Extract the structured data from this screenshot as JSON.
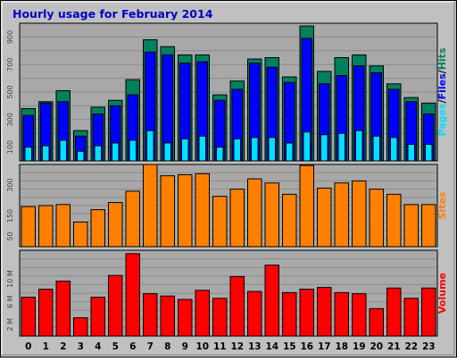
{
  "colors": {
    "page_bg": "#C0C0C0",
    "plot_bg": "#A8A8A8",
    "title": "#0000CC",
    "hits": "#00805C",
    "files": "#0000FF",
    "pages": "#00E0FF",
    "sites": "#FF8000",
    "volume": "#FF0000"
  },
  "chart_data": {
    "type": "bar",
    "title": "Hourly usage for February 2014",
    "categories": [
      "0",
      "1",
      "2",
      "3",
      "4",
      "5",
      "6",
      "7",
      "8",
      "9",
      "10",
      "11",
      "12",
      "13",
      "14",
      "15",
      "16",
      "17",
      "18",
      "19",
      "20",
      "21",
      "22",
      "23"
    ],
    "panels": [
      {
        "id": "hits-files-pages",
        "ylabel_parts": [
          "Pages",
          "Files",
          "Hits"
        ],
        "ylim": [
          0,
          1000
        ],
        "yticks": [
          "100",
          "300",
          "500",
          "700",
          "900"
        ],
        "grid": true,
        "series": [
          {
            "name": "Hits",
            "values": [
              380,
              430,
              510,
              220,
              390,
              440,
              590,
              880,
              830,
              770,
              770,
              480,
              580,
              740,
              750,
              610,
              980,
              650,
              750,
              770,
              690,
              560,
              460,
              420
            ]
          },
          {
            "name": "Files",
            "values": [
              330,
              420,
              430,
              180,
              340,
              400,
              480,
              790,
              770,
              710,
              720,
              440,
              520,
              710,
              680,
              570,
              890,
              560,
              620,
              690,
              640,
              520,
              430,
              340
            ]
          },
          {
            "name": "Pages",
            "values": [
              100,
              110,
              150,
              70,
              110,
              130,
              150,
              220,
              130,
              160,
              180,
              100,
              160,
              170,
              170,
              130,
              210,
              190,
              200,
              220,
              180,
              170,
              120,
              120
            ]
          }
        ]
      },
      {
        "id": "sites",
        "ylabel_parts": [
          "Sites"
        ],
        "ylim": [
          0,
          400
        ],
        "yticks": [
          "50",
          "150",
          "300"
        ],
        "grid": true,
        "series": [
          {
            "name": "Sites",
            "values": [
              195,
              200,
              205,
              120,
              180,
              215,
              270,
              400,
              345,
              350,
              355,
              245,
              280,
              330,
              310,
              255,
              395,
              285,
              310,
              320,
              280,
              255,
              205,
              205
            ]
          }
        ]
      },
      {
        "id": "volume",
        "ylabel_parts": [
          "Volume"
        ],
        "ylim": [
          0,
          15
        ],
        "yticks": [
          "2 M",
          "6 M",
          "10 M"
        ],
        "grid": true,
        "series": [
          {
            "name": "Volume",
            "values": [
              6.8,
              8.2,
              9.6,
              3.2,
              6.8,
              10.6,
              14.4,
              7.4,
              7.0,
              6.4,
              8.0,
              6.6,
              10.4,
              7.8,
              12.4,
              7.6,
              8.2,
              8.5,
              7.6,
              7.4,
              4.8,
              8.4,
              6.6,
              8.4
            ]
          }
        ]
      }
    ]
  }
}
